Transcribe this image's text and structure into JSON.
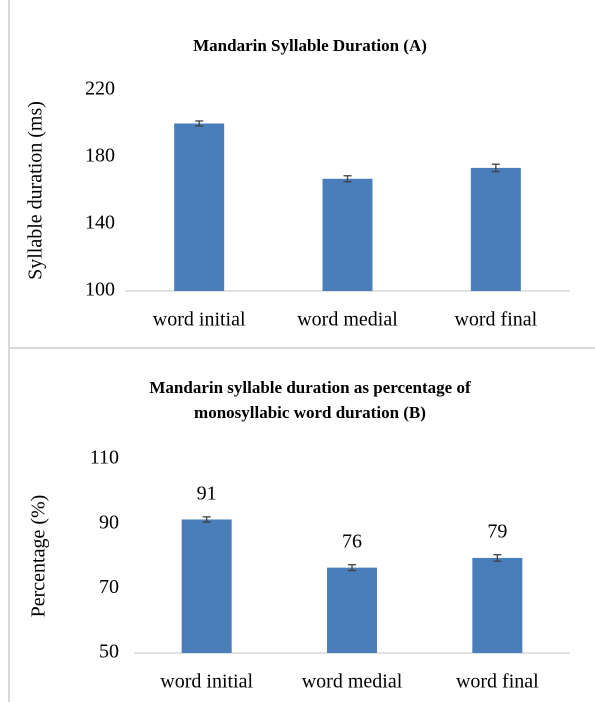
{
  "chart_data": [
    {
      "type": "bar",
      "title": "Mandarin Syllable Duration (A)",
      "y_label": "Syllable duration (ms)",
      "categories": [
        "word initial",
        "word medial",
        "word final"
      ],
      "values": [
        200,
        167,
        173.5
      ],
      "errors": [
        1.5,
        1.8,
        2.2
      ],
      "color": "#4a7ebb",
      "ylim": [
        100,
        220
      ],
      "yticks": [
        100,
        140,
        180,
        220
      ],
      "grid": false
    },
    {
      "type": "bar",
      "title": "Mandarin syllable duration as percentage of monosyllabic word duration (B)",
      "y_label": "Percentage (%)",
      "categories": [
        "word initial",
        "word medial",
        "word final"
      ],
      "values": [
        91.3,
        76.4,
        79.4
      ],
      "value_labels": [
        "91",
        "76",
        "79"
      ],
      "errors": [
        0.8,
        0.9,
        1.0
      ],
      "color": "#4a7ebb",
      "ylim": [
        50,
        110
      ],
      "yticks": [
        50,
        70,
        90,
        110
      ],
      "grid": false
    }
  ]
}
